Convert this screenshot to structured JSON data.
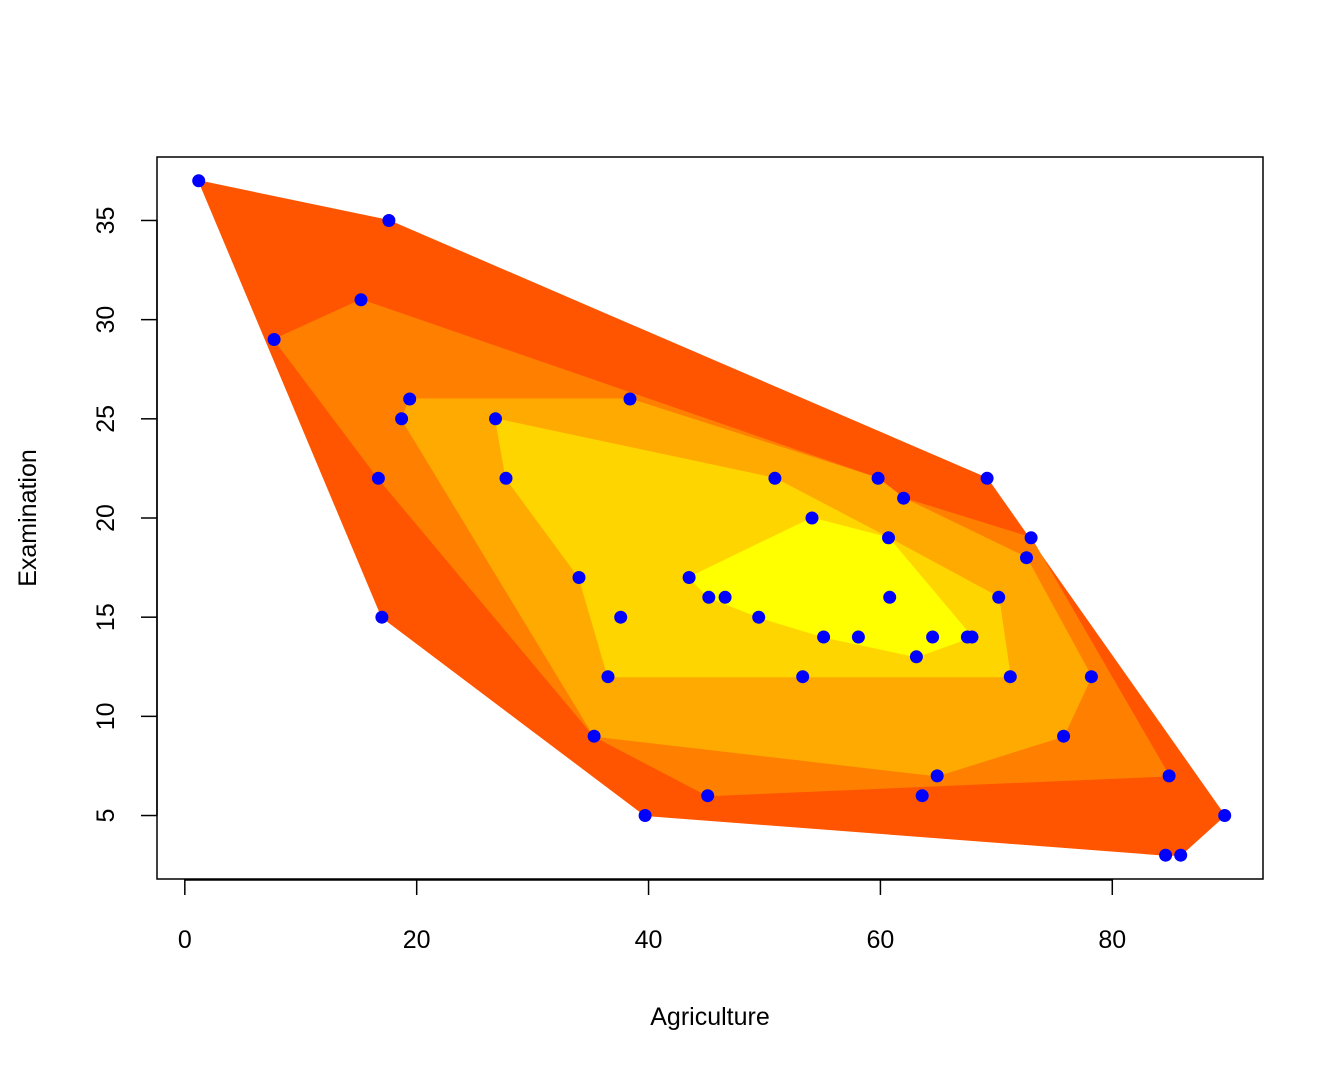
{
  "chart_data": {
    "type": "scatter",
    "title": "",
    "xlabel": "Agriculture",
    "ylabel": "Examination",
    "xlim": [
      -2.4,
      93.0
    ],
    "ylim": [
      1.8,
      38.2
    ],
    "x_ticks": [
      0,
      20,
      40,
      60,
      80
    ],
    "y_ticks": [
      5,
      10,
      15,
      20,
      25,
      30,
      35
    ],
    "x_tick_labels": [
      "0",
      "20",
      "40",
      "60",
      "80"
    ],
    "y_tick_labels": [
      "5",
      "10",
      "15",
      "20",
      "25",
      "30",
      "35"
    ],
    "grid": false,
    "legend": "none",
    "point_color": "#0000FF",
    "points": [
      {
        "x": 1.2,
        "y": 37
      },
      {
        "x": 17.6,
        "y": 35
      },
      {
        "x": 15.2,
        "y": 31
      },
      {
        "x": 7.7,
        "y": 29
      },
      {
        "x": 19.4,
        "y": 26
      },
      {
        "x": 38.4,
        "y": 26
      },
      {
        "x": 18.7,
        "y": 25
      },
      {
        "x": 26.8,
        "y": 25
      },
      {
        "x": 16.7,
        "y": 22
      },
      {
        "x": 27.7,
        "y": 22
      },
      {
        "x": 50.9,
        "y": 22
      },
      {
        "x": 59.8,
        "y": 22
      },
      {
        "x": 69.2,
        "y": 22
      },
      {
        "x": 62.0,
        "y": 21
      },
      {
        "x": 54.1,
        "y": 20
      },
      {
        "x": 60.7,
        "y": 19
      },
      {
        "x": 73.0,
        "y": 19
      },
      {
        "x": 72.6,
        "y": 18
      },
      {
        "x": 34.0,
        "y": 17
      },
      {
        "x": 43.5,
        "y": 17
      },
      {
        "x": 45.2,
        "y": 16
      },
      {
        "x": 46.6,
        "y": 16
      },
      {
        "x": 60.8,
        "y": 16
      },
      {
        "x": 70.2,
        "y": 16
      },
      {
        "x": 17.0,
        "y": 15
      },
      {
        "x": 37.6,
        "y": 15
      },
      {
        "x": 49.5,
        "y": 15
      },
      {
        "x": 55.1,
        "y": 14
      },
      {
        "x": 58.1,
        "y": 14
      },
      {
        "x": 64.5,
        "y": 14
      },
      {
        "x": 67.5,
        "y": 14
      },
      {
        "x": 67.9,
        "y": 14
      },
      {
        "x": 63.1,
        "y": 13
      },
      {
        "x": 36.5,
        "y": 12
      },
      {
        "x": 53.3,
        "y": 12
      },
      {
        "x": 71.2,
        "y": 12
      },
      {
        "x": 78.2,
        "y": 12
      },
      {
        "x": 35.3,
        "y": 9
      },
      {
        "x": 75.8,
        "y": 9
      },
      {
        "x": 64.9,
        "y": 7
      },
      {
        "x": 84.9,
        "y": 7
      },
      {
        "x": 45.1,
        "y": 6
      },
      {
        "x": 63.6,
        "y": 6
      },
      {
        "x": 39.7,
        "y": 5
      },
      {
        "x": 89.7,
        "y": 5
      },
      {
        "x": 84.6,
        "y": 3
      },
      {
        "x": 85.9,
        "y": 3
      }
    ],
    "depth_regions": [
      {
        "level": 1,
        "color": "#FF5500",
        "polygon": [
          [
            1.2,
            37
          ],
          [
            17.6,
            35
          ],
          [
            69.2,
            22
          ],
          [
            89.7,
            5
          ],
          [
            85.9,
            3
          ],
          [
            84.6,
            3
          ],
          [
            39.7,
            5
          ],
          [
            17.0,
            15
          ]
        ]
      },
      {
        "level": 2,
        "color": "#FF8000",
        "polygon": [
          [
            7.7,
            29
          ],
          [
            15.2,
            31
          ],
          [
            59.8,
            22
          ],
          [
            62.0,
            21
          ],
          [
            73.0,
            19
          ],
          [
            84.9,
            7
          ],
          [
            45.1,
            6
          ],
          [
            35.3,
            9
          ],
          [
            16.7,
            22
          ]
        ]
      },
      {
        "level": 3,
        "color": "#FFAA00",
        "polygon": [
          [
            18.7,
            25
          ],
          [
            19.4,
            26
          ],
          [
            38.4,
            26
          ],
          [
            59.8,
            22
          ],
          [
            62.0,
            21
          ],
          [
            72.6,
            18
          ],
          [
            78.2,
            12
          ],
          [
            75.8,
            9
          ],
          [
            64.9,
            7
          ],
          [
            35.3,
            9
          ]
        ]
      },
      {
        "level": 4,
        "color": "#FFD500",
        "polygon": [
          [
            26.8,
            25
          ],
          [
            50.9,
            22
          ],
          [
            60.7,
            19
          ],
          [
            70.2,
            16
          ],
          [
            71.2,
            12
          ],
          [
            53.3,
            12
          ],
          [
            36.5,
            12
          ],
          [
            34.0,
            17
          ],
          [
            27.7,
            22
          ]
        ]
      },
      {
        "level": 5,
        "color": "#FFFF00",
        "polygon": [
          [
            43.5,
            17
          ],
          [
            54.1,
            20
          ],
          [
            60.7,
            19
          ],
          [
            67.9,
            14
          ],
          [
            63.1,
            13
          ],
          [
            55.1,
            14
          ],
          [
            49.5,
            15
          ],
          [
            45.2,
            16
          ]
        ]
      }
    ]
  }
}
